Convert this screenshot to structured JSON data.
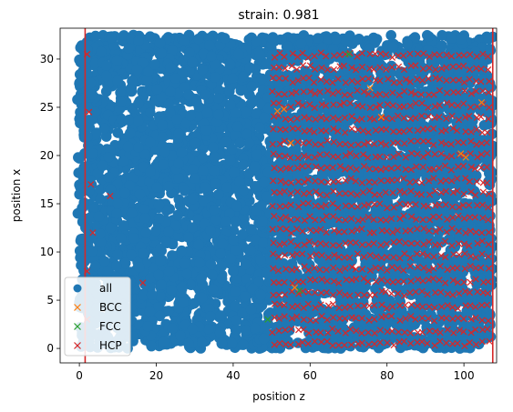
{
  "chart_data": {
    "type": "scatter",
    "title": "strain: 0.981",
    "xlabel": "position z",
    "ylabel": "position x",
    "xlim": [
      -5,
      108.5
    ],
    "ylim": [
      -1.5,
      33.2
    ],
    "xticks": [
      0,
      20,
      40,
      60,
      80,
      100
    ],
    "yticks": [
      0,
      5,
      10,
      15,
      20,
      25,
      30
    ],
    "grid": false,
    "legend_position": "lower-left",
    "vertical_lines": [
      1.5,
      107.5
    ],
    "vertical_line_color": "#d62728",
    "series": [
      {
        "name": "all",
        "marker": "circle",
        "color": "#1f77b4",
        "region": {
          "x": [
            0,
            107.5
          ],
          "y": [
            0,
            32.5
          ]
        },
        "sample_points": [
          [
            -0.5,
            25.8
          ],
          [
            -0.3,
            19.8
          ],
          [
            -0.2,
            18.2
          ],
          [
            -0.4,
            14.0
          ],
          [
            0.0,
            4.8
          ],
          [
            0.2,
            2.2
          ],
          [
            2.0,
            31.0
          ],
          [
            10.0,
            15.0
          ],
          [
            25.0,
            28.0
          ],
          [
            40.0,
            8.0
          ],
          [
            48.0,
            1.0
          ],
          [
            60.0,
            20.0
          ],
          [
            80.0,
            12.0
          ],
          [
            105.0,
            30.0
          ]
        ]
      },
      {
        "name": "BCC",
        "marker": "x",
        "color": "#ff7f0e",
        "points": [
          [
            51.5,
            24.6
          ],
          [
            53.2,
            24.8
          ],
          [
            55.0,
            21.3
          ],
          [
            75.6,
            27.0
          ],
          [
            78.5,
            24.0
          ],
          [
            99.2,
            20.2
          ],
          [
            100.5,
            19.8
          ],
          [
            104.6,
            25.5
          ],
          [
            56.0,
            6.3
          ]
        ]
      },
      {
        "name": "FCC",
        "marker": "x",
        "color": "#2ca02c",
        "points": [
          [
            49.0,
            3.0
          ],
          [
            70.0,
            30.5
          ],
          [
            57.3,
            6.0
          ]
        ]
      },
      {
        "name": "HCP",
        "marker": "x",
        "color": "#d62728",
        "region": {
          "x": [
            50.5,
            107.5
          ],
          "y": [
            0.5,
            31.5
          ]
        },
        "sample_points": [
          [
            2.0,
            30.5
          ],
          [
            2.5,
            24.5
          ],
          [
            3.0,
            17.0
          ],
          [
            3.5,
            12.0
          ],
          [
            16.5,
            6.8
          ],
          [
            8.0,
            15.8
          ],
          [
            2.0,
            8.0
          ],
          [
            2.0,
            3.0
          ]
        ]
      }
    ]
  }
}
